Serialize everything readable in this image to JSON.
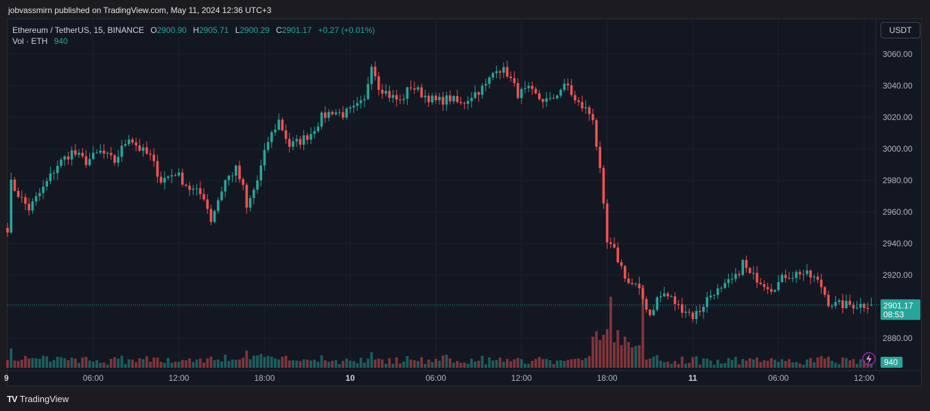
{
  "header": {
    "publisher_text": "jobvassmirn published on TradingView.com, May 11, 2024 12:36 UTC+3"
  },
  "legend": {
    "symbol": "Ethereum / TetherUS, 15, BINANCE",
    "open_label": "O",
    "open": "2900.90",
    "high_label": "H",
    "high": "2905.71",
    "low_label": "L",
    "low": "2900.29",
    "close_label": "C",
    "close": "2901.17",
    "change": "+0.27 (+0.01%)",
    "vol_label": "Vol · ETH",
    "vol": "940"
  },
  "currency_button": "USDT",
  "last_price": {
    "price": "2901.17",
    "countdown": "08:53",
    "volume": "940"
  },
  "brand": {
    "name": "TradingView",
    "logo_text": "TV"
  },
  "colors": {
    "up": "#26a69a",
    "down": "#ef5350",
    "background": "#131722",
    "grid": "#1f2430"
  },
  "icons": {
    "flash": "flash-icon"
  },
  "chart_data": {
    "type": "candlestick",
    "symbol": "ETHUSDT",
    "interval": "15",
    "exchange": "BINANCE",
    "ylim": [
      2870,
      3070
    ],
    "yticks": [
      "3060.00",
      "3040.00",
      "3020.00",
      "3000.00",
      "2980.00",
      "2960.00",
      "2940.00",
      "2920.00",
      "2900.00",
      "2880.00"
    ],
    "xticks": [
      {
        "label": "9",
        "bold": true,
        "index": 0
      },
      {
        "label": "06:00",
        "bold": false,
        "index": 24
      },
      {
        "label": "12:00",
        "bold": false,
        "index": 48
      },
      {
        "label": "18:00",
        "bold": false,
        "index": 72
      },
      {
        "label": "10",
        "bold": true,
        "index": 96
      },
      {
        "label": "06:00",
        "bold": false,
        "index": 120
      },
      {
        "label": "12:00",
        "bold": false,
        "index": 144
      },
      {
        "label": "18:00",
        "bold": false,
        "index": 168
      },
      {
        "label": "11",
        "bold": true,
        "index": 192
      },
      {
        "label": "06:00",
        "bold": false,
        "index": 216
      },
      {
        "label": "12:00",
        "bold": false,
        "index": 240
      }
    ],
    "anchors": [
      [
        0,
        2950
      ],
      [
        1,
        2978
      ],
      [
        4,
        2968
      ],
      [
        6,
        2962
      ],
      [
        10,
        2975
      ],
      [
        14,
        2990
      ],
      [
        18,
        2998
      ],
      [
        22,
        2992
      ],
      [
        26,
        2998
      ],
      [
        30,
        2992
      ],
      [
        34,
        3008
      ],
      [
        37,
        3000
      ],
      [
        40,
        2995
      ],
      [
        43,
        2980
      ],
      [
        47,
        2985
      ],
      [
        51,
        2975
      ],
      [
        55,
        2970
      ],
      [
        57,
        2955
      ],
      [
        59,
        2968
      ],
      [
        61,
        2980
      ],
      [
        64,
        2987
      ],
      [
        66,
        2975
      ],
      [
        67,
        2962
      ],
      [
        70,
        2980
      ],
      [
        73,
        3005
      ],
      [
        76,
        3018
      ],
      [
        79,
        3002
      ],
      [
        82,
        3005
      ],
      [
        85,
        3010
      ],
      [
        88,
        3020
      ],
      [
        91,
        3024
      ],
      [
        94,
        3022
      ],
      [
        97,
        3025
      ],
      [
        100,
        3030
      ],
      [
        102,
        3055
      ],
      [
        104,
        3040
      ],
      [
        107,
        3034
      ],
      [
        110,
        3030
      ],
      [
        113,
        3040
      ],
      [
        116,
        3035
      ],
      [
        120,
        3030
      ],
      [
        124,
        3032
      ],
      [
        127,
        3028
      ],
      [
        130,
        3034
      ],
      [
        134,
        3040
      ],
      [
        137,
        3052
      ],
      [
        140,
        3048
      ],
      [
        143,
        3035
      ],
      [
        146,
        3037
      ],
      [
        149,
        3032
      ],
      [
        152,
        3030
      ],
      [
        155,
        3038
      ],
      [
        157,
        3040
      ],
      [
        159,
        3030
      ],
      [
        162,
        3025
      ],
      [
        164,
        3020
      ],
      [
        166,
        2985
      ],
      [
        168,
        2940
      ],
      [
        170,
        2935
      ],
      [
        172,
        2925
      ],
      [
        174,
        2915
      ],
      [
        176,
        2913
      ],
      [
        178,
        2905
      ],
      [
        180,
        2895
      ],
      [
        182,
        2905
      ],
      [
        184,
        2908
      ],
      [
        186,
        2905
      ],
      [
        188,
        2900
      ],
      [
        190,
        2898
      ],
      [
        192,
        2894
      ],
      [
        194,
        2898
      ],
      [
        196,
        2905
      ],
      [
        198,
        2910
      ],
      [
        200,
        2910
      ],
      [
        202,
        2915
      ],
      [
        204,
        2918
      ],
      [
        206,
        2928
      ],
      [
        208,
        2920
      ],
      [
        210,
        2918
      ],
      [
        212,
        2915
      ],
      [
        214,
        2912
      ],
      [
        216,
        2915
      ],
      [
        218,
        2920
      ],
      [
        220,
        2920
      ],
      [
        222,
        2922
      ],
      [
        224,
        2920
      ],
      [
        226,
        2918
      ],
      [
        228,
        2913
      ],
      [
        230,
        2903
      ],
      [
        232,
        2901.17
      ]
    ],
    "last": {
      "open": 2900.9,
      "high": 2905.71,
      "low": 2900.29,
      "close": 2901.17,
      "volume": 940,
      "time": "May 11, 2024 12:36 UTC+3"
    }
  }
}
